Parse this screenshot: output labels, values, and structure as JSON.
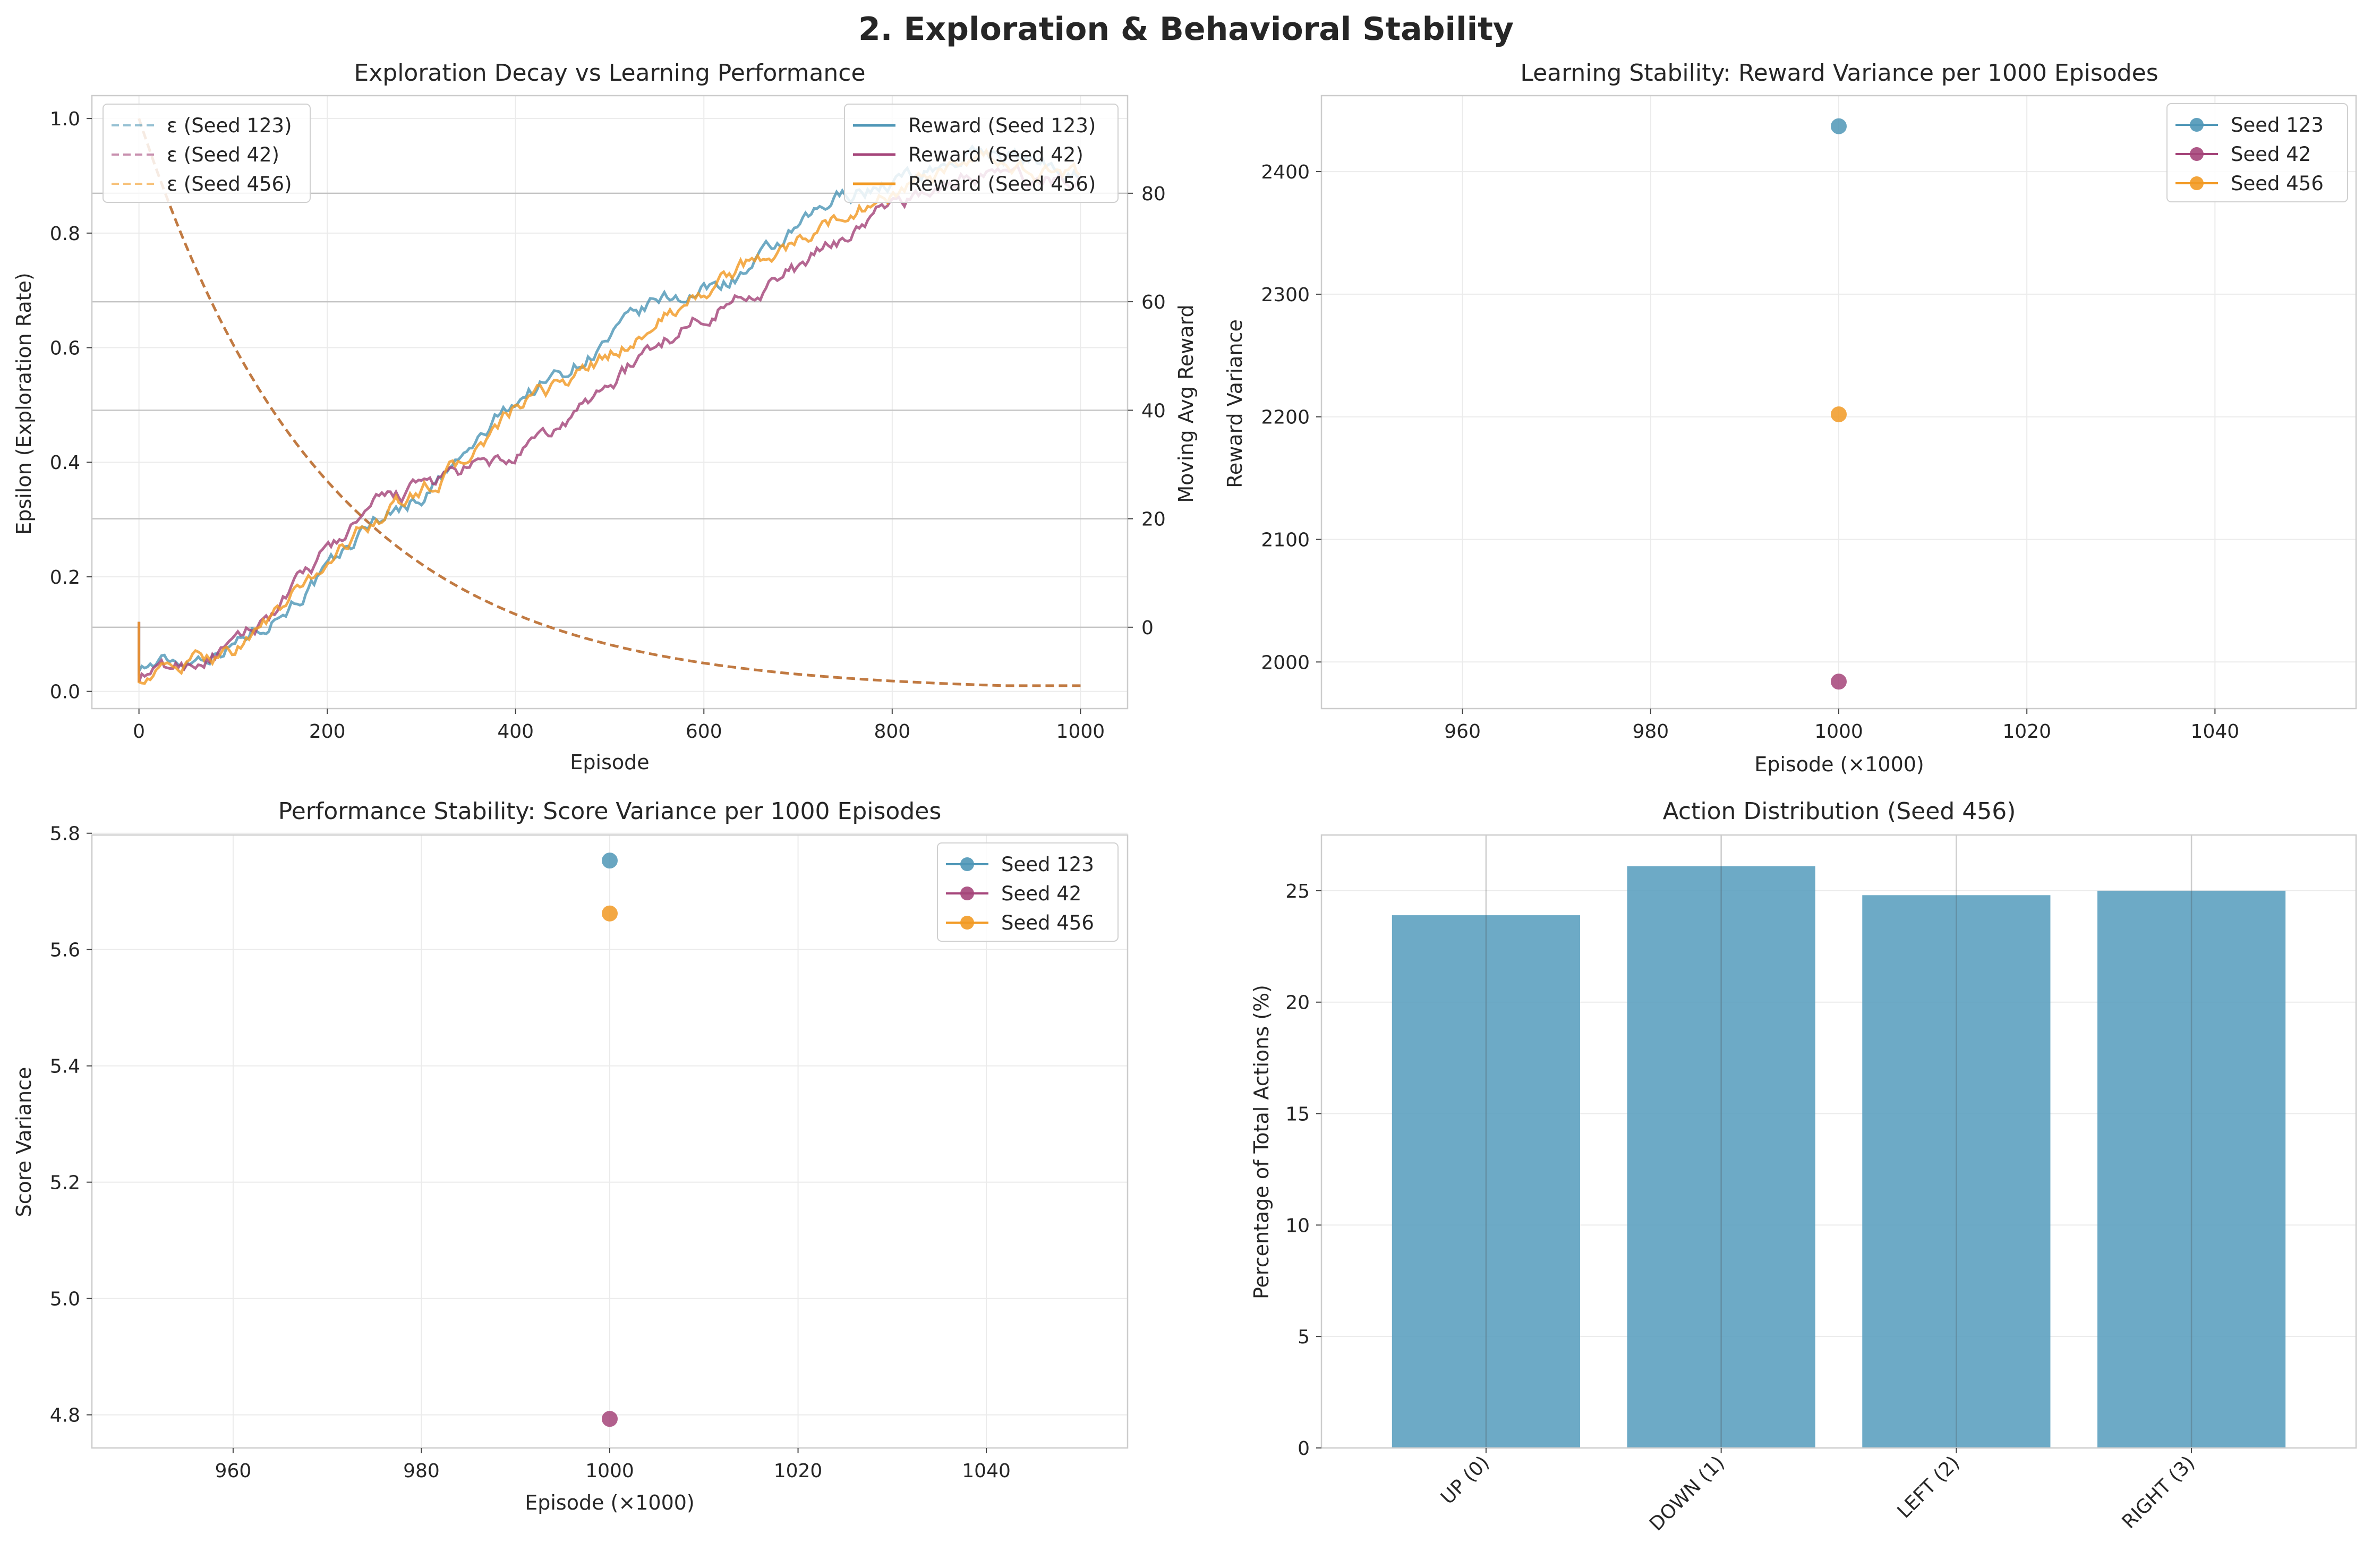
{
  "suptitle": "2. Exploration & Behavioral Stability",
  "colors": {
    "seed123": "#4f97b7",
    "seed42": "#a5457a",
    "seed456": "#f29a24",
    "eps_overlap": "#c17a42",
    "bar": "#5da1c0"
  },
  "chart_data": [
    {
      "type": "line",
      "title": "Exploration Decay vs Learning Performance",
      "xlabel": "Episode",
      "ylabel": "Epsilon (Exploration Rate)",
      "ylabel_right": "Moving Avg Reward",
      "xlim": [
        -50,
        1050
      ],
      "ylim": [
        -0.03,
        1.04
      ],
      "ylim_right": [
        -15,
        98
      ],
      "xticks": [
        "0",
        "200",
        "400",
        "600",
        "800",
        "1000"
      ],
      "yticks": [
        "0.0",
        "0.2",
        "0.4",
        "0.6",
        "0.8",
        "1.0"
      ],
      "yticks_right": [
        "0",
        "20",
        "40",
        "60",
        "80"
      ],
      "legend_left": [
        "ε (Seed 123)",
        "ε (Seed 42)",
        "ε (Seed 456)"
      ],
      "legend_right": [
        "Reward (Seed 123)",
        "Reward (Seed 42)",
        "Reward (Seed 456)"
      ],
      "epsilon": {
        "start": 1.0,
        "min": 0.01,
        "decay": 0.995,
        "episodes": 1000
      },
      "series": [
        {
          "name": "Reward (Seed 123)",
          "color": "#4f97b7",
          "points": [
            [
              0,
              -7
            ],
            [
              50,
              -6
            ],
            [
              100,
              -3
            ],
            [
              150,
              3
            ],
            [
              200,
              10
            ],
            [
              250,
              20
            ],
            [
              300,
              24
            ],
            [
              350,
              32
            ],
            [
              400,
              42
            ],
            [
              450,
              47
            ],
            [
              500,
              53
            ],
            [
              550,
              60
            ],
            [
              600,
              62
            ],
            [
              650,
              66
            ],
            [
              700,
              73
            ],
            [
              750,
              80
            ],
            [
              800,
              82
            ],
            [
              850,
              85
            ],
            [
              900,
              88
            ],
            [
              950,
              86
            ],
            [
              1000,
              84
            ]
          ]
        },
        {
          "name": "Reward (Seed 42)",
          "color": "#a5457a",
          "points": [
            [
              0,
              -9
            ],
            [
              50,
              -7
            ],
            [
              100,
              -4
            ],
            [
              150,
              4
            ],
            [
              200,
              14
            ],
            [
              250,
              22
            ],
            [
              300,
              26
            ],
            [
              350,
              29
            ],
            [
              400,
              31
            ],
            [
              450,
              37
            ],
            [
              500,
              45
            ],
            [
              550,
              52
            ],
            [
              600,
              58
            ],
            [
              650,
              62
            ],
            [
              700,
              66
            ],
            [
              750,
              72
            ],
            [
              800,
              78
            ],
            [
              850,
              81
            ],
            [
              900,
              84
            ],
            [
              950,
              82
            ],
            [
              1000,
              83
            ]
          ]
        },
        {
          "name": "Reward (Seed 456)",
          "color": "#f29a24",
          "points": [
            [
              0,
              -9
            ],
            [
              50,
              -7
            ],
            [
              100,
              -4
            ],
            [
              150,
              3
            ],
            [
              200,
              12
            ],
            [
              250,
              20
            ],
            [
              300,
              25
            ],
            [
              350,
              31
            ],
            [
              400,
              40
            ],
            [
              450,
              45
            ],
            [
              500,
              50
            ],
            [
              550,
              56
            ],
            [
              600,
              62
            ],
            [
              650,
              67
            ],
            [
              700,
              71
            ],
            [
              750,
              76
            ],
            [
              800,
              80
            ],
            [
              850,
              83
            ],
            [
              900,
              86
            ],
            [
              950,
              84
            ],
            [
              1000,
              83
            ]
          ]
        }
      ]
    },
    {
      "type": "scatter",
      "title": "Learning Stability: Reward Variance per 1000 Episodes",
      "xlabel": "Episode (×1000)",
      "ylabel": "Reward Variance",
      "xlim": [
        945,
        1055
      ],
      "ylim": [
        1962,
        2462
      ],
      "xticks": [
        "960",
        "980",
        "1000",
        "1020",
        "1040"
      ],
      "yticks": [
        "2000",
        "2100",
        "2200",
        "2300",
        "2400"
      ],
      "legend": [
        "Seed 123",
        "Seed 42",
        "Seed 456"
      ],
      "series": [
        {
          "name": "Seed 123",
          "color": "#4f97b7",
          "x": 1000,
          "y": 2437
        },
        {
          "name": "Seed 42",
          "color": "#a5457a",
          "x": 1000,
          "y": 1984
        },
        {
          "name": "Seed 456",
          "color": "#f29a24",
          "x": 1000,
          "y": 2202
        }
      ]
    },
    {
      "type": "scatter",
      "title": "Performance Stability: Score Variance per 1000 Episodes",
      "xlabel": "Episode (×1000)",
      "ylabel": "Score Variance",
      "xlim": [
        945,
        1055
      ],
      "ylim": [
        4.743,
        5.797
      ],
      "xticks": [
        "960",
        "980",
        "1000",
        "1020",
        "1040"
      ],
      "yticks": [
        "4.8",
        "5.0",
        "5.2",
        "5.4",
        "5.6",
        "5.8"
      ],
      "legend": [
        "Seed 123",
        "Seed 42",
        "Seed 456"
      ],
      "series": [
        {
          "name": "Seed 123",
          "color": "#4f97b7",
          "x": 1000,
          "y": 5.753
        },
        {
          "name": "Seed 42",
          "color": "#a5457a",
          "x": 1000,
          "y": 4.793
        },
        {
          "name": "Seed 456",
          "color": "#f29a24",
          "x": 1000,
          "y": 5.662
        }
      ]
    },
    {
      "type": "bar",
      "title": "Action Distribution (Seed 456)",
      "xlabel": "",
      "ylabel": "Percentage of Total Actions (%)",
      "ylim": [
        0,
        27.5
      ],
      "yticks": [
        "0",
        "5",
        "10",
        "15",
        "20",
        "25"
      ],
      "categories": [
        "UP (0)",
        "DOWN (1)",
        "LEFT (2)",
        "RIGHT (3)"
      ],
      "values": [
        23.9,
        26.1,
        24.8,
        25.0
      ]
    }
  ]
}
